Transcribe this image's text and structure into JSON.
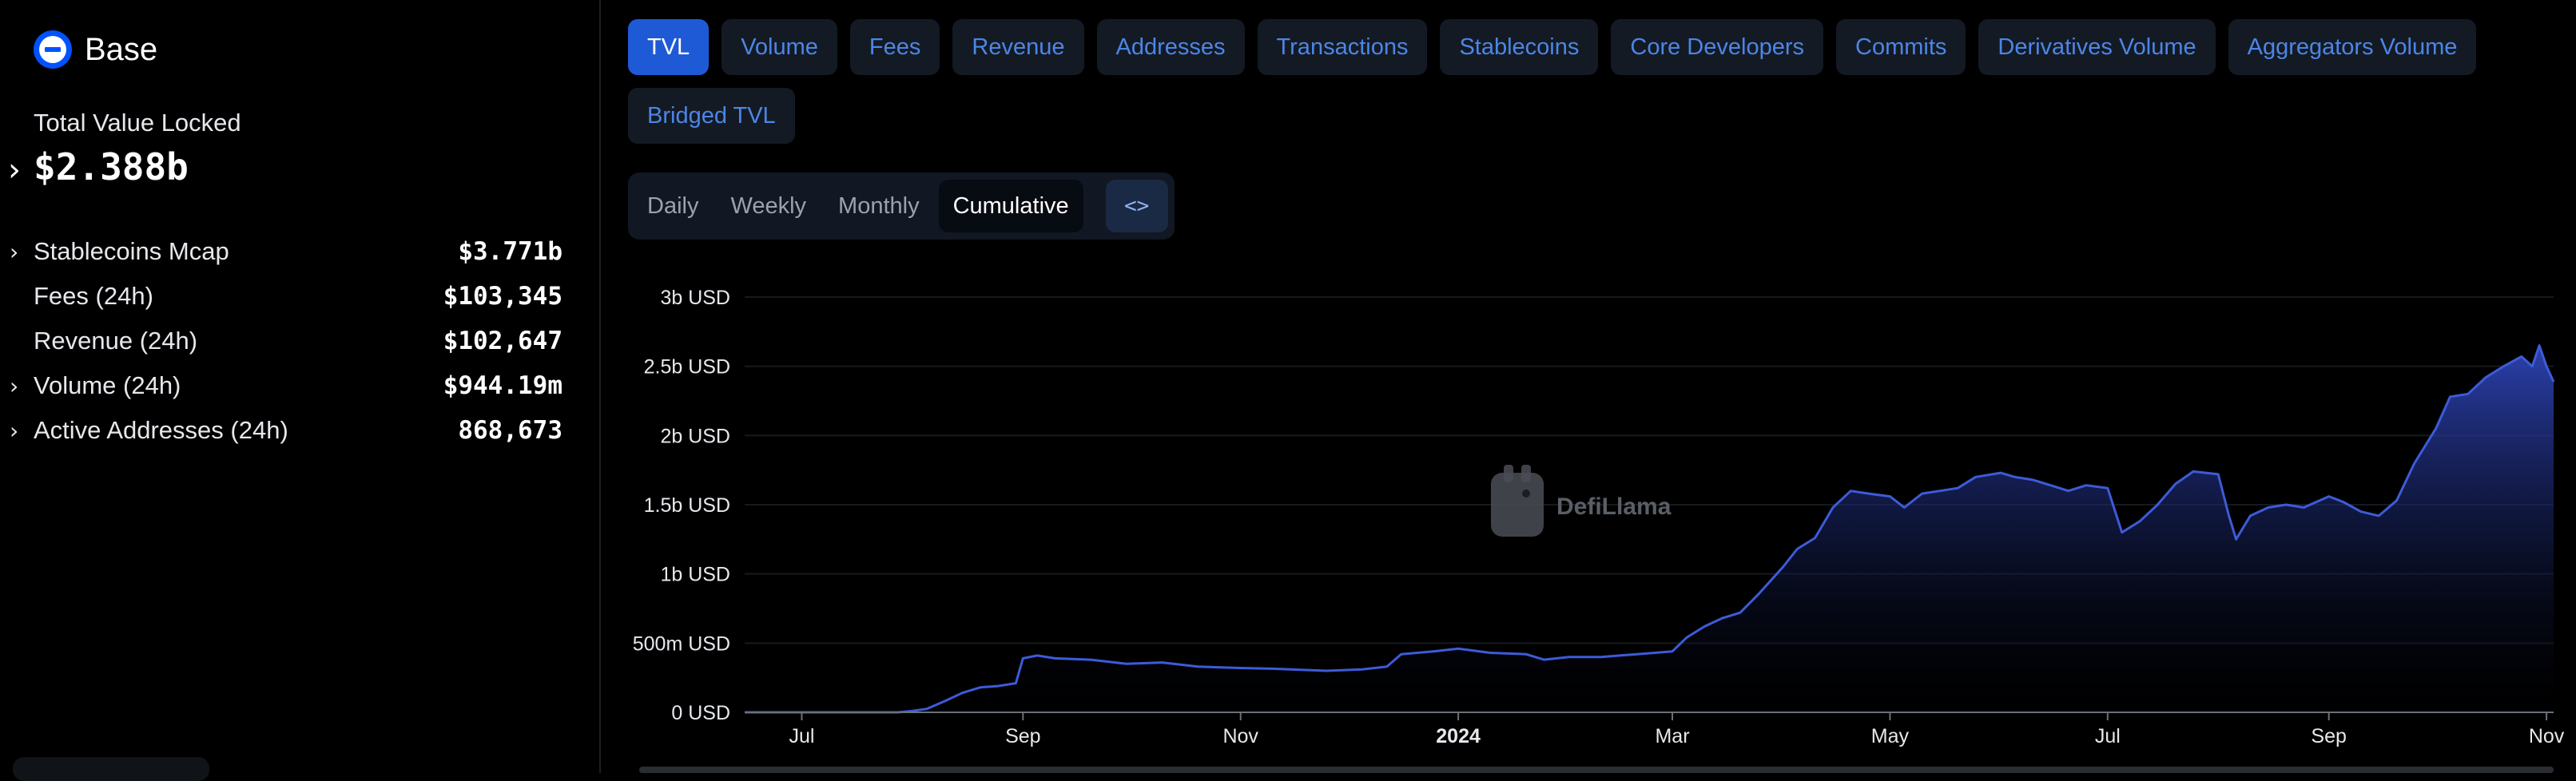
{
  "chain": {
    "name": "Base"
  },
  "tvl": {
    "label": "Total Value Locked",
    "value": "$2.388b"
  },
  "stats": [
    {
      "label": "Stablecoins Mcap",
      "value": "$3.771b",
      "expandable": true
    },
    {
      "label": "Fees (24h)",
      "value": "$103,345",
      "expandable": false
    },
    {
      "label": "Revenue (24h)",
      "value": "$102,647",
      "expandable": false
    },
    {
      "label": "Volume (24h)",
      "value": "$944.19m",
      "expandable": true
    },
    {
      "label": "Active Addresses (24h)",
      "value": "868,673",
      "expandable": true
    }
  ],
  "tabs": [
    {
      "label": "TVL",
      "active": true
    },
    {
      "label": "Volume",
      "active": false
    },
    {
      "label": "Fees",
      "active": false
    },
    {
      "label": "Revenue",
      "active": false
    },
    {
      "label": "Addresses",
      "active": false
    },
    {
      "label": "Transactions",
      "active": false
    },
    {
      "label": "Stablecoins",
      "active": false
    },
    {
      "label": "Core Developers",
      "active": false
    },
    {
      "label": "Commits",
      "active": false
    },
    {
      "label": "Derivatives Volume",
      "active": false
    },
    {
      "label": "Aggregators Volume",
      "active": false
    },
    {
      "label": "Bridged TVL",
      "active": false
    }
  ],
  "granularity": {
    "options": [
      "Daily",
      "Weekly",
      "Monthly",
      "Cumulative"
    ],
    "selected": "Cumulative",
    "embed_icon": "code-icon"
  },
  "watermark": {
    "text": "DefiLlama",
    "icon": "llama-icon"
  },
  "colors": {
    "accent": "#1f5ad6",
    "tab_text": "#4c86e6",
    "line": "#3d5bd9",
    "area_top": "#2e44b8",
    "area_bottom": "#000000"
  },
  "chart_data": {
    "type": "area",
    "title": "",
    "xlabel": "",
    "ylabel": "",
    "grid": true,
    "y_ticks": [
      "0 USD",
      "500m USD",
      "1b USD",
      "1.5b USD",
      "2b USD",
      "2.5b USD",
      "3b USD"
    ],
    "ylim": [
      0,
      3000000000
    ],
    "x_ticks": [
      {
        "label": "Jul",
        "date": "2023-07-01"
      },
      {
        "label": "Sep",
        "date": "2023-09-01"
      },
      {
        "label": "Nov",
        "date": "2023-11-01"
      },
      {
        "label": "2024",
        "date": "2024-01-01",
        "bold": true
      },
      {
        "label": "Mar",
        "date": "2024-03-01"
      },
      {
        "label": "May",
        "date": "2024-05-01"
      },
      {
        "label": "Jul",
        "date": "2024-07-01"
      },
      {
        "label": "Sep",
        "date": "2024-09-01"
      },
      {
        "label": "Nov",
        "date": "2024-11-01"
      }
    ],
    "xlim": [
      "2023-06-15",
      "2024-11-03"
    ],
    "series": [
      {
        "points": [
          [
            "2023-06-15",
            0
          ],
          [
            "2023-07-01",
            0
          ],
          [
            "2023-07-15",
            0
          ],
          [
            "2023-07-28",
            0
          ],
          [
            "2023-08-01",
            10000000
          ],
          [
            "2023-08-05",
            25000000
          ],
          [
            "2023-08-10",
            80000000
          ],
          [
            "2023-08-15",
            140000000
          ],
          [
            "2023-08-20",
            180000000
          ],
          [
            "2023-08-25",
            190000000
          ],
          [
            "2023-08-30",
            210000000
          ],
          [
            "2023-09-01",
            390000000
          ],
          [
            "2023-09-05",
            410000000
          ],
          [
            "2023-09-10",
            390000000
          ],
          [
            "2023-09-20",
            380000000
          ],
          [
            "2023-09-30",
            350000000
          ],
          [
            "2023-10-10",
            360000000
          ],
          [
            "2023-10-20",
            330000000
          ],
          [
            "2023-11-01",
            320000000
          ],
          [
            "2023-11-10",
            315000000
          ],
          [
            "2023-11-20",
            305000000
          ],
          [
            "2023-11-25",
            300000000
          ],
          [
            "2023-12-05",
            310000000
          ],
          [
            "2023-12-12",
            330000000
          ],
          [
            "2023-12-16",
            420000000
          ],
          [
            "2023-12-25",
            440000000
          ],
          [
            "2024-01-01",
            460000000
          ],
          [
            "2024-01-10",
            430000000
          ],
          [
            "2024-01-20",
            420000000
          ],
          [
            "2024-01-25",
            380000000
          ],
          [
            "2024-02-01",
            400000000
          ],
          [
            "2024-02-10",
            400000000
          ],
          [
            "2024-02-20",
            420000000
          ],
          [
            "2024-03-01",
            440000000
          ],
          [
            "2024-03-05",
            540000000
          ],
          [
            "2024-03-10",
            620000000
          ],
          [
            "2024-03-15",
            680000000
          ],
          [
            "2024-03-20",
            720000000
          ],
          [
            "2024-03-25",
            850000000
          ],
          [
            "2024-04-01",
            1050000000
          ],
          [
            "2024-04-05",
            1180000000
          ],
          [
            "2024-04-10",
            1260000000
          ],
          [
            "2024-04-15",
            1480000000
          ],
          [
            "2024-04-20",
            1600000000
          ],
          [
            "2024-04-25",
            1580000000
          ],
          [
            "2024-05-01",
            1560000000
          ],
          [
            "2024-05-05",
            1480000000
          ],
          [
            "2024-05-10",
            1580000000
          ],
          [
            "2024-05-15",
            1600000000
          ],
          [
            "2024-05-20",
            1620000000
          ],
          [
            "2024-05-25",
            1700000000
          ],
          [
            "2024-06-01",
            1730000000
          ],
          [
            "2024-06-05",
            1700000000
          ],
          [
            "2024-06-10",
            1680000000
          ],
          [
            "2024-06-15",
            1640000000
          ],
          [
            "2024-06-20",
            1600000000
          ],
          [
            "2024-06-25",
            1640000000
          ],
          [
            "2024-07-01",
            1620000000
          ],
          [
            "2024-07-05",
            1300000000
          ],
          [
            "2024-07-10",
            1380000000
          ],
          [
            "2024-07-15",
            1500000000
          ],
          [
            "2024-07-20",
            1650000000
          ],
          [
            "2024-07-25",
            1740000000
          ],
          [
            "2024-08-01",
            1720000000
          ],
          [
            "2024-08-04",
            1420000000
          ],
          [
            "2024-08-06",
            1250000000
          ],
          [
            "2024-08-10",
            1420000000
          ],
          [
            "2024-08-15",
            1480000000
          ],
          [
            "2024-08-20",
            1500000000
          ],
          [
            "2024-08-25",
            1480000000
          ],
          [
            "2024-09-01",
            1560000000
          ],
          [
            "2024-09-05",
            1520000000
          ],
          [
            "2024-09-10",
            1450000000
          ],
          [
            "2024-09-15",
            1420000000
          ],
          [
            "2024-09-20",
            1530000000
          ],
          [
            "2024-09-25",
            1800000000
          ],
          [
            "2024-10-01",
            2050000000
          ],
          [
            "2024-10-05",
            2280000000
          ],
          [
            "2024-10-10",
            2300000000
          ],
          [
            "2024-10-15",
            2420000000
          ],
          [
            "2024-10-20",
            2500000000
          ],
          [
            "2024-10-25",
            2570000000
          ],
          [
            "2024-10-28",
            2500000000
          ],
          [
            "2024-10-30",
            2650000000
          ],
          [
            "2024-11-01",
            2500000000
          ],
          [
            "2024-11-03",
            2388000000
          ]
        ]
      }
    ]
  }
}
